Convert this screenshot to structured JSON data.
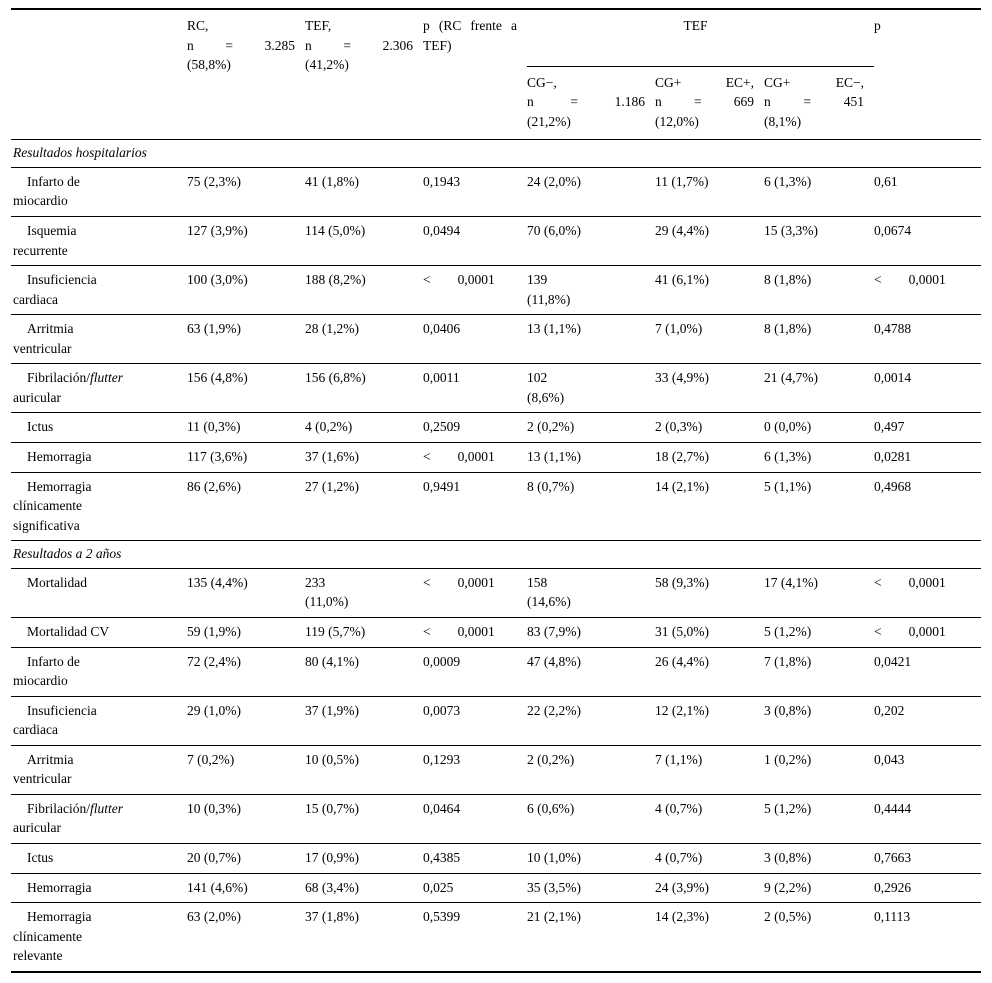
{
  "table": {
    "header": {
      "corner": "",
      "col_rc": "RC,\nn = 3.285\n(58,8%)",
      "col_tef": "TEF,\nn = 2.306\n(41,2%)",
      "col_p1": "p (RC frente a\nTEF)",
      "group_tef": "TEF",
      "col_cg_neg": "CG−,\nn = 1.186\n(21,2%)",
      "col_cg_ec_pos": "CG+ EC+,\nn = 669\n(12,0%)",
      "col_cg_ec_neg": "CG+ EC−,\nn = 451\n(8,1%)",
      "col_p2": "p"
    },
    "sections": [
      {
        "title": "Resultados hospitalarios",
        "rows": [
          {
            "label": "Infarto de\nmiocardio",
            "values": [
              "75 (2,3%)",
              "41 (1,8%)",
              "0,1943",
              "24 (2,0%)",
              "11 (1,7%)",
              "6 (1,3%)",
              "0,61"
            ]
          },
          {
            "label": "Isquemia\nrecurrente",
            "values": [
              "127 (3,9%)",
              "114 (5,0%)",
              "0,0494",
              "70 (6,0%)",
              "29 (4,4%)",
              "15 (3,3%)",
              "0,0674"
            ]
          },
          {
            "label": "Insuficiencia\ncardiaca",
            "values": [
              "100 (3,0%)",
              "188 (8,2%)",
              "<  0,0001",
              "139\n(11,8%)",
              "41 (6,1%)",
              "8 (1,8%)",
              "<  0,0001"
            ]
          },
          {
            "label": "Arritmia\nventricular",
            "values": [
              "63 (1,9%)",
              "28 (1,2%)",
              "0,0406",
              "13 (1,1%)",
              "7 (1,0%)",
              "8 (1,8%)",
              "0,4788"
            ]
          },
          {
            "label": "Fibrilación/*flutter*\nauricular",
            "values": [
              "156 (4,8%)",
              "156 (6,8%)",
              "0,0011",
              "102\n(8,6%)",
              "33 (4,9%)",
              "21 (4,7%)",
              "0,0014"
            ]
          },
          {
            "label": "Ictus",
            "values": [
              "11 (0,3%)",
              "4 (0,2%)",
              "0,2509",
              "2 (0,2%)",
              "2 (0,3%)",
              "0 (0,0%)",
              "0,497"
            ]
          },
          {
            "label": "Hemorragia",
            "values": [
              "117 (3,6%)",
              "37 (1,6%)",
              "<  0,0001",
              "13 (1,1%)",
              "18 (2,7%)",
              "6 (1,3%)",
              "0,0281"
            ]
          },
          {
            "label": "Hemorragia\nclínicamente\nsignificativa",
            "values": [
              "86 (2,6%)",
              "27 (1,2%)",
              "0,9491",
              "8 (0,7%)",
              "14 (2,1%)",
              "5 (1,1%)",
              "0,4968"
            ]
          }
        ]
      },
      {
        "title": "Resultados a 2 años",
        "rows": [
          {
            "label": "Mortalidad",
            "values": [
              "135 (4,4%)",
              "233\n(11,0%)",
              "<  0,0001",
              "158\n(14,6%)",
              "58 (9,3%)",
              "17 (4,1%)",
              "<  0,0001"
            ]
          },
          {
            "label": "Mortalidad CV",
            "values": [
              "59 (1,9%)",
              "119 (5,7%)",
              "<  0,0001",
              "83 (7,9%)",
              "31 (5,0%)",
              "5 (1,2%)",
              "<  0,0001"
            ]
          },
          {
            "label": "Infarto de\nmiocardio",
            "values": [
              "72 (2,4%)",
              "80 (4,1%)",
              "0,0009",
              "47 (4,8%)",
              "26 (4,4%)",
              "7 (1,8%)",
              "0,0421"
            ]
          },
          {
            "label": "Insuficiencia\ncardiaca",
            "values": [
              "29 (1,0%)",
              "37 (1,9%)",
              "0,0073",
              "22 (2,2%)",
              "12 (2,1%)",
              "3 (0,8%)",
              "0,202"
            ]
          },
          {
            "label": "Arritmia\nventricular",
            "values": [
              "7 (0,2%)",
              "10 (0,5%)",
              "0,1293",
              "2 (0,2%)",
              "7 (1,1%)",
              "1 (0,2%)",
              "0,043"
            ]
          },
          {
            "label": "Fibrilación/*flutter*\nauricular",
            "values": [
              "10 (0,3%)",
              "15 (0,7%)",
              "0,0464",
              "6 (0,6%)",
              "4 (0,7%)",
              "5 (1,2%)",
              "0,4444"
            ]
          },
          {
            "label": "Ictus",
            "values": [
              "20 (0,7%)",
              "17 (0,9%)",
              "0,4385",
              "10 (1,0%)",
              "4 (0,7%)",
              "3 (0,8%)",
              "0,7663"
            ]
          },
          {
            "label": "Hemorragia",
            "values": [
              "141 (4,6%)",
              "68 (3,4%)",
              "0,025",
              "35 (3,5%)",
              "24 (3,9%)",
              "9 (2,2%)",
              "0,2926"
            ]
          },
          {
            "label": "Hemorragia\nclínicamente\nrelevante",
            "values": [
              "63 (2,0%)",
              "37 (1,8%)",
              "0,5399",
              "21 (2,1%)",
              "14 (2,3%)",
              "2 (0,5%)",
              "0,1113"
            ]
          }
        ]
      }
    ]
  }
}
